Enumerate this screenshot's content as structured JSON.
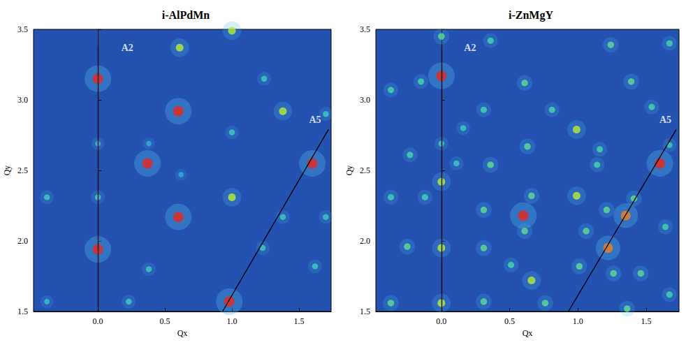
{
  "chart_data": [
    {
      "type": "scatter",
      "title": "i-AlPdMn",
      "x_label": "Qx",
      "y_label": "Qy",
      "marker": "circle",
      "grid": false,
      "xlim": [
        -0.48,
        1.74
      ],
      "xticks": [
        {
          "value": 0,
          "label": "0.0"
        },
        0.5,
        {
          "value": 1,
          "label": "1.0"
        },
        1.5
      ],
      "ylim": [
        1.5,
        3.5
      ],
      "yticks": [
        1.5,
        {
          "value": 2,
          "label": "2.0"
        },
        2.5,
        {
          "value": 3,
          "label": "3.0"
        },
        3.5
      ],
      "intensity_range": [
        0,
        1
      ],
      "x": [
        0,
        0.37,
        0.6,
        0.6,
        0,
        0.98,
        1.6,
        0.61,
        1.0,
        1.24,
        1.38,
        1.0,
        1.0,
        0.38,
        1.62,
        1.38,
        1.23,
        0,
        -0.38,
        0,
        0.23,
        -0.38,
        0.38,
        1.7,
        1.7,
        0.62
      ],
      "y": [
        3.15,
        2.55,
        2.92,
        2.17,
        1.94,
        1.57,
        2.55,
        3.37,
        3.49,
        3.15,
        2.92,
        2.77,
        2.31,
        1.8,
        1.82,
        2.17,
        1.95,
        2.31,
        2.31,
        2.69,
        1.57,
        1.57,
        2.69,
        2.9,
        2.17,
        2.47
      ],
      "intensity": [
        1,
        1,
        1,
        1,
        1,
        1,
        1,
        0.6,
        0.6,
        0.35,
        0.6,
        0.35,
        0.6,
        0.35,
        0.35,
        0.35,
        0.35,
        0.35,
        0.35,
        0.3,
        0.35,
        0.3,
        0.25,
        0.35,
        0.35,
        0.25
      ],
      "arrows": [
        {
          "label": "A2",
          "from": [
            0,
            1.5
          ],
          "to": [
            0,
            3.38
          ],
          "label_at": [
            0.22,
            3.37
          ]
        },
        {
          "label": "A5",
          "from": [
            0.93,
            1.5
          ],
          "to": [
            1.72,
            2.79
          ],
          "label_at": [
            1.62,
            2.86
          ]
        }
      ]
    },
    {
      "type": "scatter",
      "title": "i-ZnMgY",
      "x_label": "Qx",
      "y_label": "Qy",
      "marker": "circle",
      "grid": false,
      "xlim": [
        -0.48,
        1.74
      ],
      "xticks": [
        {
          "value": 0,
          "label": "0.0"
        },
        0.5,
        {
          "value": 1,
          "label": "1.0"
        },
        1.5
      ],
      "ylim": [
        1.5,
        3.5
      ],
      "yticks": [
        1.5,
        {
          "value": 2,
          "label": "2.0"
        },
        2.5,
        {
          "value": 3,
          "label": "3.0"
        },
        3.5
      ],
      "intensity_range": [
        0,
        1
      ],
      "x": [
        0,
        1.6,
        0.6,
        1.22,
        1.35,
        0,
        0,
        0,
        0,
        0.36,
        0.61,
        1.24,
        1.39,
        1.67,
        -0.15,
        -0.37,
        0.31,
        0.81,
        0.99,
        1.54,
        1.67,
        1.16,
        0.63,
        0.36,
        0.11,
        -0.23,
        -0.37,
        -0.12,
        0.31,
        0.66,
        0.99,
        1.21,
        1.41,
        1.64,
        1.06,
        0.61,
        0.31,
        -0.25,
        0.51,
        0.66,
        1.01,
        1.26,
        1.46,
        1.67,
        0.31,
        -0.37,
        0,
        0.76,
        1.36,
        0.16,
        1.14
      ],
      "y": [
        3.17,
        2.55,
        2.18,
        1.95,
        2.18,
        3.45,
        2.69,
        2.42,
        1.95,
        3.42,
        3.12,
        3.39,
        3.13,
        3.4,
        3.13,
        3.07,
        2.93,
        2.93,
        2.79,
        2.95,
        2.68,
        2.65,
        2.67,
        2.54,
        2.55,
        2.61,
        2.31,
        2.31,
        2.22,
        2.32,
        2.32,
        2.22,
        2.3,
        2.1,
        2.07,
        2.07,
        1.95,
        1.96,
        1.83,
        1.72,
        1.82,
        1.77,
        1.77,
        1.62,
        1.57,
        1.56,
        1.56,
        1.56,
        1.52,
        2.8,
        2.54
      ],
      "intensity": [
        1,
        1,
        1,
        0.9,
        0.9,
        0.45,
        0.35,
        0.6,
        0.6,
        0.4,
        0.45,
        0.45,
        0.45,
        0.4,
        0.4,
        0.4,
        0.4,
        0.4,
        0.6,
        0.4,
        0.35,
        0.4,
        0.45,
        0.45,
        0.35,
        0.4,
        0.4,
        0.4,
        0.45,
        0.45,
        0.6,
        0.45,
        0.45,
        0.4,
        0.45,
        0.45,
        0.45,
        0.45,
        0.4,
        0.6,
        0.45,
        0.45,
        0.45,
        0.4,
        0.45,
        0.45,
        0.6,
        0.45,
        0.45,
        0.35,
        0.4
      ],
      "arrows": [
        {
          "label": "A2",
          "from": [
            0,
            1.5
          ],
          "to": [
            0,
            3.38
          ],
          "label_at": [
            0.21,
            3.37
          ]
        },
        {
          "label": "A5",
          "from": [
            0.93,
            1.5
          ],
          "to": [
            1.72,
            2.79
          ],
          "label_at": [
            1.64,
            2.86
          ]
        }
      ]
    }
  ]
}
